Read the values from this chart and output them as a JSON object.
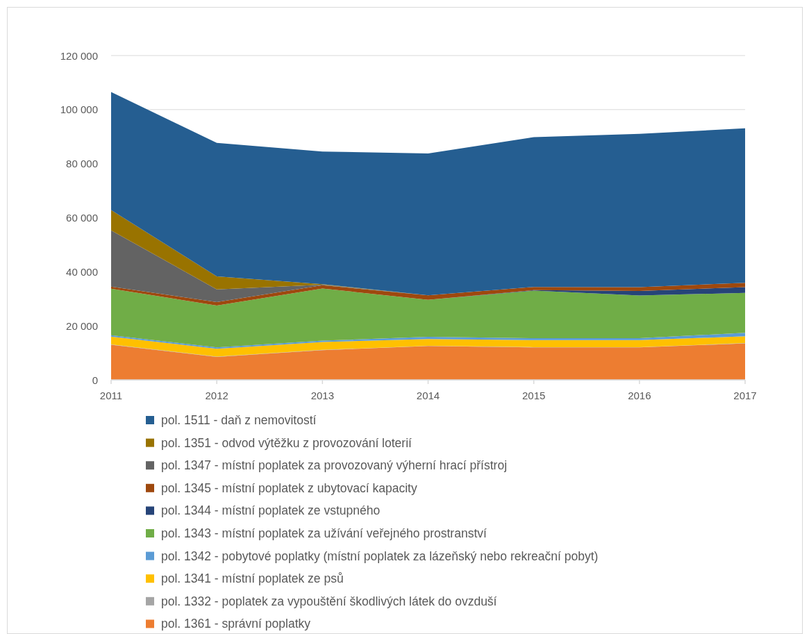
{
  "chart_data": {
    "type": "area",
    "stacked": true,
    "categories": [
      "2011",
      "2012",
      "2013",
      "2014",
      "2015",
      "2016",
      "2017"
    ],
    "ylim": [
      0,
      120000
    ],
    "yticks": [
      0,
      {
        "value": 20000,
        "label": "20 000"
      },
      {
        "value": 40000,
        "label": "40 000"
      },
      {
        "value": 60000,
        "label": "60 000"
      },
      {
        "value": 80000,
        "label": "80 000"
      },
      {
        "value": 100000,
        "label": "100 000"
      },
      {
        "value": 120000,
        "label": "120 000"
      }
    ],
    "grid": "y",
    "legend": "bottom",
    "series": [
      {
        "name": "pol. 1361 - správní poplatky",
        "color": "#ed7d31",
        "values": [
          13000,
          8500,
          11000,
          12500,
          12000,
          12000,
          13500
        ]
      },
      {
        "name": "pol. 1332 - poplatek za vypouštění škodlivých látek do ovzduší",
        "color": "#a5a5a5",
        "values": [
          100,
          100,
          100,
          100,
          100,
          100,
          100
        ]
      },
      {
        "name": "pol. 1341 - místní poplatek ze psů",
        "color": "#ffc000",
        "values": [
          2900,
          2900,
          2900,
          2500,
          2600,
          2600,
          2500
        ]
      },
      {
        "name": "pol. 1342 - pobytové poplatky (místní poplatek za lázeňský nebo rekreační pobyt)",
        "color": "#5b9bd5",
        "values": [
          500,
          500,
          500,
          800,
          700,
          700,
          1300
        ]
      },
      {
        "name": "pol. 1343 - místní poplatek za užívání veřejného prostranství",
        "color": "#70ad47",
        "values": [
          17200,
          15500,
          19300,
          13700,
          17600,
          15800,
          14800
        ]
      },
      {
        "name": "pol. 1344 - místní poplatek ze vstupného",
        "color": "#264478",
        "values": [
          0,
          0,
          0,
          0,
          200,
          1700,
          2100
        ]
      },
      {
        "name": "pol. 1345 - místní poplatek z ubytovací kapacity",
        "color": "#9e480e",
        "values": [
          800,
          1300,
          1200,
          1700,
          1200,
          1400,
          1600
        ]
      },
      {
        "name": "pol. 1347 - místní poplatek za provozovaný výherní hrací přístroj",
        "color": "#636363",
        "values": [
          20800,
          4700,
          200,
          0,
          0,
          0,
          0
        ]
      },
      {
        "name": "pol. 1351 - odvod výtěžku z provozování loterií",
        "color": "#997300",
        "values": [
          7500,
          4800,
          200,
          0,
          0,
          0,
          0
        ]
      },
      {
        "name": "pol. 1511 - daň z nemovitostí",
        "color": "#255e91",
        "values": [
          43700,
          49400,
          49100,
          52500,
          55400,
          56700,
          57200
        ]
      }
    ]
  }
}
